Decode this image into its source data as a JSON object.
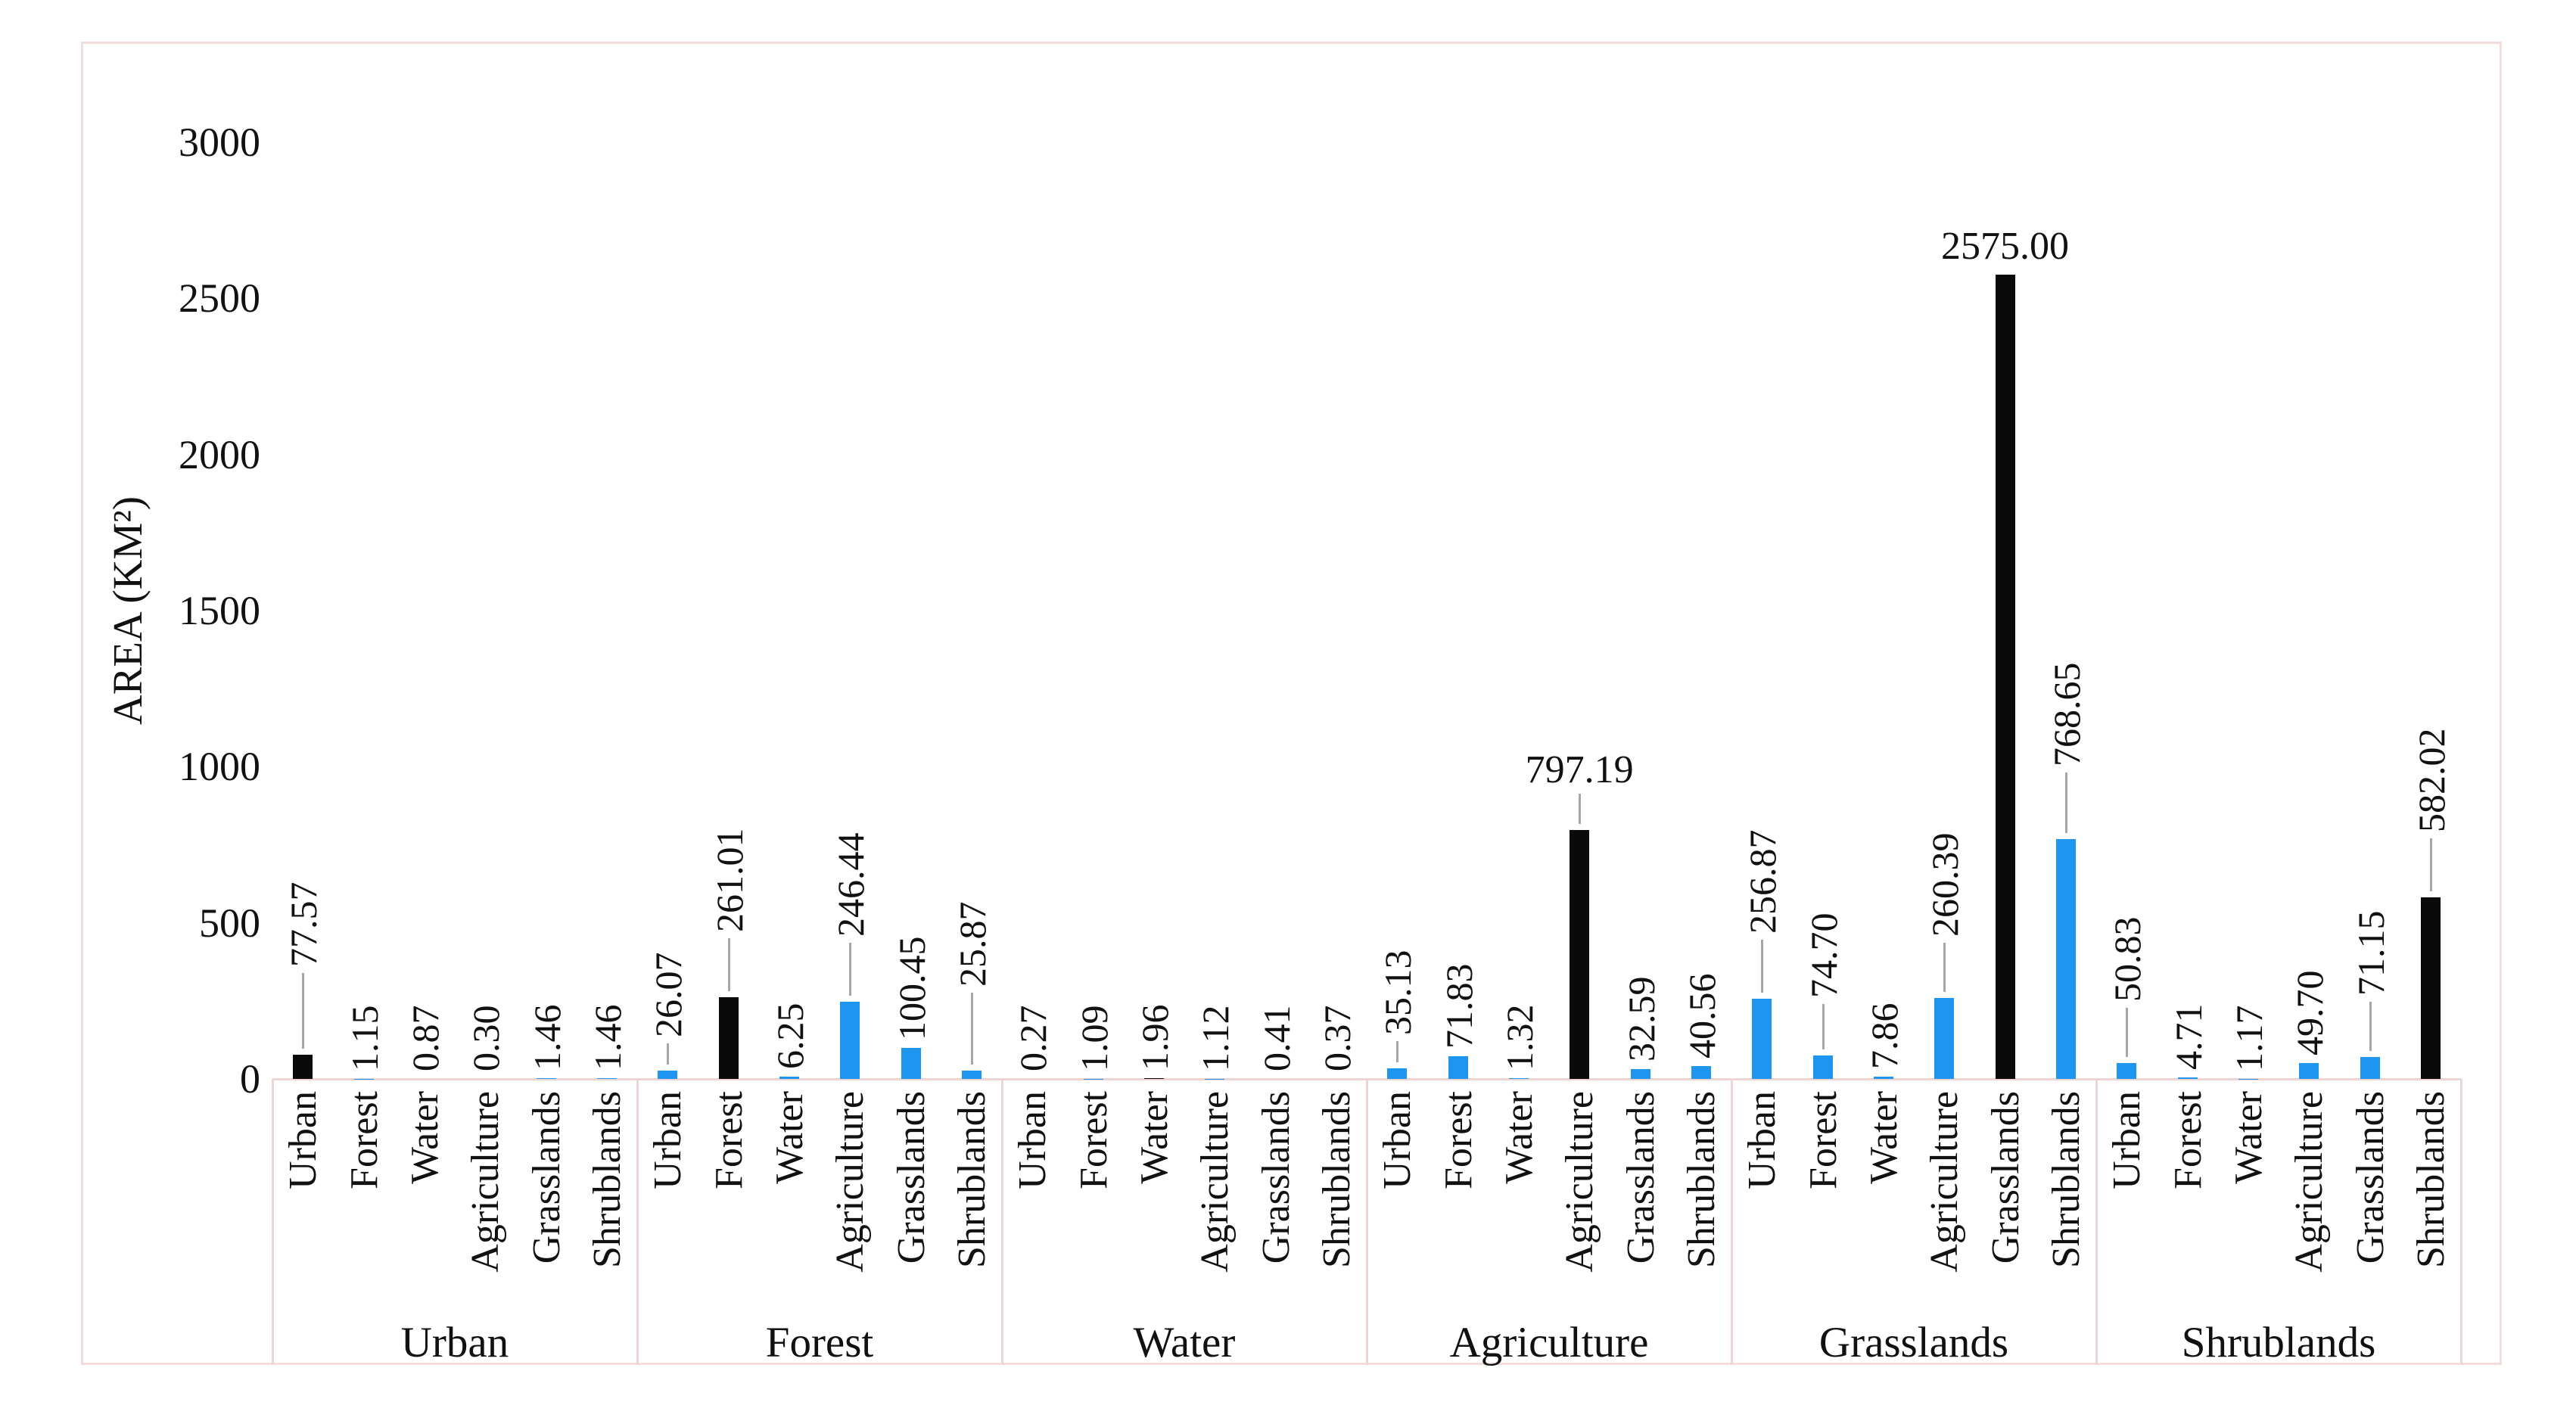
{
  "chart_data": {
    "type": "bar",
    "title": "",
    "xlabel": "",
    "ylabel": "AREA (KM²)",
    "ylim": [
      0,
      3000
    ],
    "yticks": [
      0,
      500,
      1000,
      1500,
      2000,
      2500,
      3000
    ],
    "grid": false,
    "legend": false,
    "groups": [
      "Urban",
      "Forest",
      "Water",
      "Agriculture",
      "Grasslands",
      "Shrublands"
    ],
    "subcategories": [
      "Urban",
      "Forest",
      "Water",
      "Agriculture",
      "Grasslands",
      "Shrublands"
    ],
    "series": [
      {
        "group": "Urban",
        "values": [
          77.57,
          1.15,
          0.87,
          0.3,
          1.46,
          1.46
        ]
      },
      {
        "group": "Forest",
        "values": [
          26.07,
          261.01,
          6.25,
          246.44,
          100.45,
          25.87
        ]
      },
      {
        "group": "Water",
        "values": [
          0.27,
          1.09,
          1.96,
          1.12,
          0.41,
          0.37
        ]
      },
      {
        "group": "Agriculture",
        "values": [
          35.13,
          71.83,
          1.32,
          797.19,
          32.59,
          40.56
        ]
      },
      {
        "group": "Grasslands",
        "values": [
          256.87,
          74.7,
          7.86,
          260.39,
          2575.0,
          768.65
        ]
      },
      {
        "group": "Shrublands",
        "values": [
          50.83,
          4.71,
          1.17,
          49.7,
          71.15,
          582.02
        ]
      }
    ],
    "value_label_format": "two-decimals",
    "colors": {
      "diagonal_bar": "#0a0a0a",
      "off_diagonal_bar": "#1e96f0",
      "leader_line": "#a6a6a6",
      "axis_line": "#eed5d5",
      "chart_border": "#f2dcdc",
      "text": "#111111"
    },
    "horizontal_value_labels": [
      [
        3,
        3
      ],
      [
        4,
        4
      ]
    ],
    "leader_lengths": [
      [
        100,
        0,
        0,
        0,
        0,
        0
      ],
      [
        28,
        70,
        0,
        70,
        0,
        95
      ],
      [
        0,
        0,
        0,
        0,
        0,
        0
      ],
      [
        28,
        0,
        0,
        40,
        0,
        0
      ],
      [
        70,
        60,
        0,
        65,
        0,
        80
      ],
      [
        65,
        0,
        0,
        0,
        65,
        70
      ]
    ]
  }
}
